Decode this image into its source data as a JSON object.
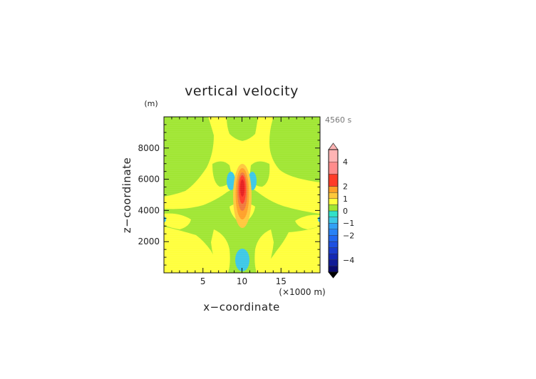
{
  "chart_data": {
    "type": "heatmap",
    "title": "vertical velocity",
    "xlabel": "x−coordinate",
    "ylabel": "z−coordinate",
    "x_unit": "(×1000 m)",
    "y_unit": "(m)",
    "time_label": "4560 s",
    "xlim": [
      0,
      20
    ],
    "ylim": [
      0,
      10000
    ],
    "x_ticks": [
      5,
      10,
      15
    ],
    "x_tick_labels": [
      "5",
      "10",
      "15"
    ],
    "y_ticks": [
      2000,
      4000,
      6000,
      8000
    ],
    "y_tick_labels": [
      "2000",
      "4000",
      "6000",
      "8000"
    ],
    "grid": false,
    "legend": "right",
    "colorbar": {
      "levels": [
        -5,
        -4.5,
        -4,
        -3.5,
        -3,
        -2.5,
        -2,
        -1.5,
        -1,
        -0.5,
        0,
        0.5,
        1,
        1.5,
        2,
        3,
        4,
        5
      ],
      "colors": [
        "#0a0a6e",
        "#101a96",
        "#1428b4",
        "#1a3ccd",
        "#1e50e1",
        "#2268f0",
        "#2a82f5",
        "#32a0f5",
        "#3cc8e6",
        "#32e1c8",
        "#a0e632",
        "#ffff3c",
        "#ffc83c",
        "#ffa028",
        "#ff3c28",
        "#ff8c8c",
        "#ffb4b4"
      ],
      "tick_values": [
        4,
        2,
        1,
        0,
        -1,
        -2,
        -4
      ],
      "tick_labels": [
        "4",
        "2",
        "1",
        "0",
        "−1",
        "−2",
        "−4"
      ]
    },
    "features": [
      {
        "kind": "updraft_core",
        "x": 10,
        "z": 5000,
        "rx": 1.2,
        "rz": 1600,
        "max": 3.0
      },
      {
        "kind": "downdraft",
        "x": 8.9,
        "z": 5950,
        "rx": 0.45,
        "rz": 380,
        "value": -0.7
      },
      {
        "kind": "downdraft",
        "x": 11.2,
        "z": 5950,
        "rx": 0.45,
        "rz": 380,
        "value": -0.7
      },
      {
        "kind": "downdraft",
        "x": 10,
        "z": 900,
        "rx": 0.9,
        "rz": 700,
        "value": -0.7
      },
      {
        "kind": "downdraft",
        "x": 0.1,
        "z": 3450,
        "rx": 0.35,
        "rz": 180,
        "value": -0.7
      },
      {
        "kind": "downdraft",
        "x": 19.95,
        "z": 3450,
        "rx": 0.35,
        "rz": 180,
        "value": -0.7
      }
    ]
  }
}
